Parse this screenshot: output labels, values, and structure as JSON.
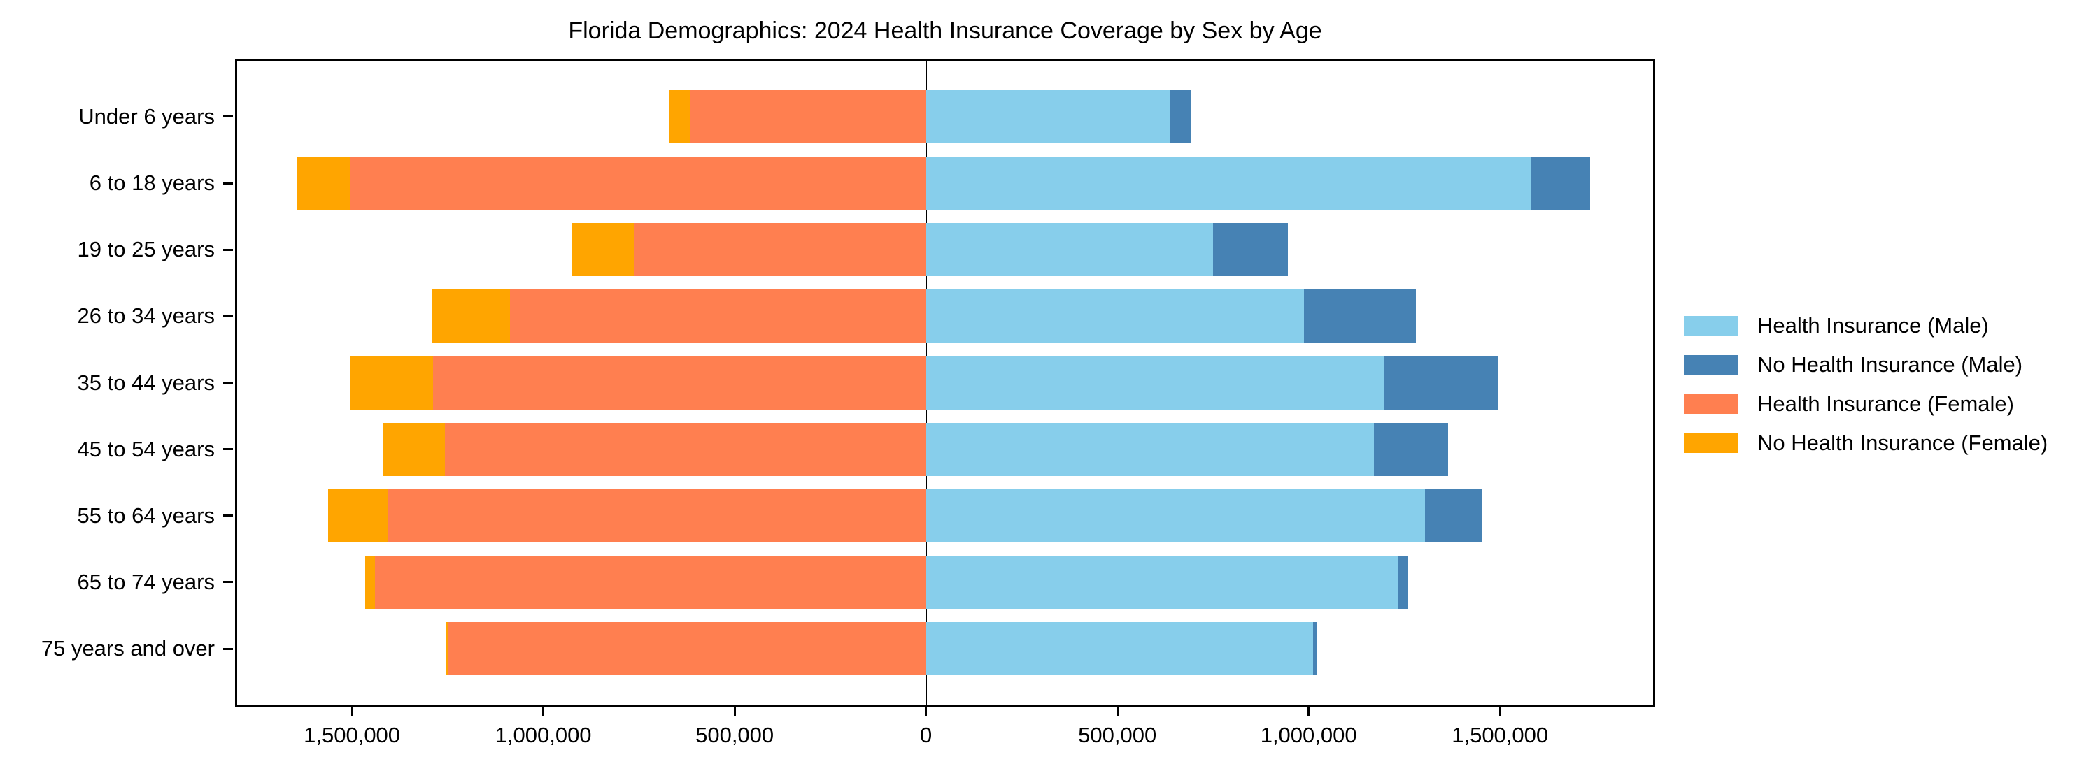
{
  "chart_data": {
    "type": "bar",
    "orientation": "horizontal",
    "stacked": true,
    "pyramid": true,
    "title": "Florida Demographics: 2024 Health Insurance Coverage by Sex by Age",
    "categories": [
      "Under 6 years",
      "6 to 18 years",
      "19 to 25 years",
      "26 to 34 years",
      "35 to 44 years",
      "45 to 54 years",
      "55 to 64 years",
      "65 to 74 years",
      "75 years and over"
    ],
    "series": [
      {
        "name": "Health Insurance (Male)",
        "side": "right",
        "stack_order": 1,
        "color": "#87CEEB",
        "values": [
          639000,
          1581000,
          750000,
          987000,
          1197000,
          1171000,
          1304000,
          1233000,
          1011000
        ]
      },
      {
        "name": "No Health Insurance (Male)",
        "side": "right",
        "stack_order": 2,
        "color": "#4682B4",
        "values": [
          53000,
          155000,
          195000,
          293000,
          299000,
          193000,
          148000,
          27000,
          11000
        ]
      },
      {
        "name": "Health Insurance (Female)",
        "side": "left",
        "stack_order": 1,
        "color": "#FF7F50",
        "values": [
          617000,
          1503000,
          763000,
          1087000,
          1288000,
          1257000,
          1406000,
          1439000,
          1248000
        ]
      },
      {
        "name": "No Health Insurance (Female)",
        "side": "left",
        "stack_order": 2,
        "color": "#FFA500",
        "values": [
          53000,
          139000,
          164000,
          204000,
          215000,
          162000,
          157000,
          26000,
          7000
        ]
      }
    ],
    "xlim": [
      -1800000,
      1900000
    ],
    "x_ticks": [
      -1500000,
      -1000000,
      -500000,
      0,
      500000,
      1000000,
      1500000
    ],
    "x_tick_labels": [
      "1,500,000",
      "1,000,000",
      "500,000",
      "0",
      "500,000",
      "1,000,000",
      "1,500,000"
    ],
    "ylim_units": [
      -0.84,
      8.84
    ],
    "bar_height_units": 0.8,
    "grid": false,
    "legend_position": "right",
    "axis_color": "#000000",
    "background_color": "#ffffff"
  },
  "legend": {
    "items": [
      {
        "label": "Health Insurance (Male)",
        "color": "#87CEEB"
      },
      {
        "label": "No Health Insurance (Male)",
        "color": "#4682B4"
      },
      {
        "label": "Health Insurance (Female)",
        "color": "#FF7F50"
      },
      {
        "label": "No Health Insurance (Female)",
        "color": "#FFA500"
      }
    ]
  }
}
